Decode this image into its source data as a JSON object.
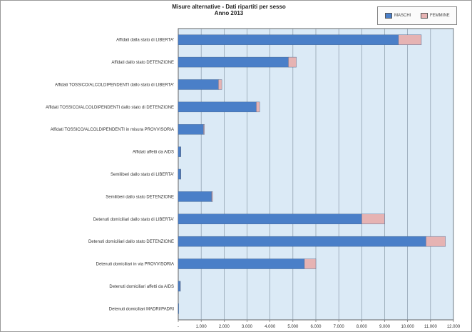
{
  "chart_data": {
    "type": "bar",
    "orientation": "horizontal",
    "stacked": true,
    "title": "Misure alternative - Dati ripartiti per sesso",
    "subtitle": "Anno 2013",
    "xlim": [
      0,
      12000
    ],
    "x_ticks": [
      "-",
      "1.000",
      "2.000",
      "3.000",
      "4.000",
      "5.000",
      "6.000",
      "7.000",
      "8.000",
      "9.000",
      "10.000",
      "11.000",
      "12.000"
    ],
    "grid": true,
    "legend_position": "top-right",
    "categories": [
      "Affidati dalla stato di LIBERTA'",
      "Affidati dallo stato DETENZIONE",
      "Affidati TOSSICO/ALCOLDIPENDENTI dallo stato di LIBERTA'",
      "Affidati TOSSICO/ALCOLDIPENDENTI dallo stato di DETENZIONE",
      "Affidati TOSSICO/ALCOLDIPENDENTI in misura PROVVISORIA",
      "Affidati affetti da AIDS",
      "Semiliberi dallo stato di LIBERTA'",
      "Semiliberi dallo stato DETENZIONE",
      "Detenuti domiciliari dallo stato di LIBERTA'",
      "Detenuti domiciliari dallo stato DETENZIONE",
      "Detenuti domiciliari in via PROVVISORIA",
      "Detenuti domiciliari affetti da AIDS",
      "Detenuti domiciliari MADRI/PADRI"
    ],
    "series": [
      {
        "name": "MASCHI",
        "color": "#4a7fc8",
        "values": [
          9600,
          4800,
          1750,
          3400,
          1100,
          100,
          100,
          1450,
          8000,
          10800,
          5500,
          80,
          20
        ]
      },
      {
        "name": "FEMMINE",
        "color": "#e6b3b3",
        "values": [
          1000,
          350,
          150,
          150,
          40,
          10,
          10,
          50,
          1000,
          850,
          500,
          10,
          0
        ]
      }
    ]
  }
}
